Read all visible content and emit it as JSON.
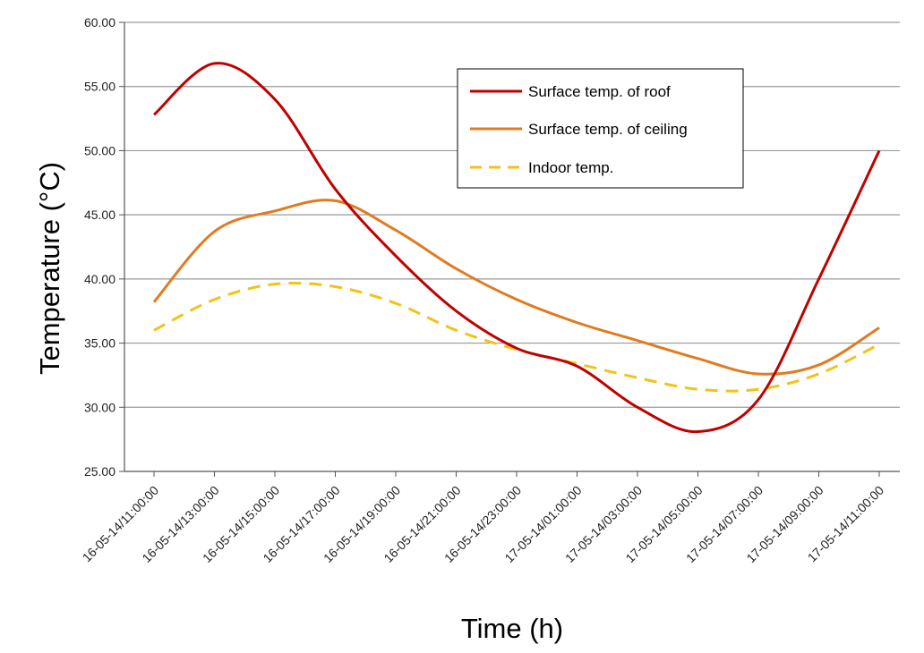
{
  "chart_data": {
    "type": "line",
    "xlabel": "Time (h)",
    "ylabel": "Temperature (°C)",
    "ylim": [
      25,
      60
    ],
    "y_ticks": [
      "25.00",
      "30.00",
      "35.00",
      "40.00",
      "45.00",
      "50.00",
      "55.00",
      "60.00"
    ],
    "grid": "horizontal",
    "legend_position": "top-right",
    "categories": [
      "16-05-14/11:00:00",
      "16-05-14/13:00:00",
      "16-05-14/15:00:00",
      "16-05-14/17:00:00",
      "16-05-14/19:00:00",
      "16-05-14/21:00:00",
      "16-05-14/23:00:00",
      "17-05-14/01:00:00",
      "17-05-14/03:00:00",
      "17-05-14/05:00:00",
      "17-05-14/07:00:00",
      "17-05-14/09:00:00",
      "17-05-14/11:00:00"
    ],
    "series": [
      {
        "name": "Surface temp. of roof",
        "color": "#c00000",
        "style": "solid",
        "values": [
          52.8,
          56.8,
          54.0,
          47.0,
          41.8,
          37.5,
          34.6,
          33.2,
          30.0,
          28.1,
          30.6,
          40.0,
          50.0
        ]
      },
      {
        "name": "Surface temp. of ceiling",
        "color": "#e07b20",
        "style": "solid",
        "values": [
          38.2,
          43.7,
          45.3,
          46.1,
          43.8,
          40.8,
          38.4,
          36.6,
          35.2,
          33.8,
          32.6,
          33.3,
          36.2
        ]
      },
      {
        "name": "Indoor temp.",
        "color": "#f2c21b",
        "style": "dashed",
        "values": [
          36.0,
          38.4,
          39.6,
          39.4,
          38.1,
          36.0,
          34.5,
          33.4,
          32.3,
          31.4,
          31.4,
          32.6,
          34.9
        ]
      }
    ]
  }
}
